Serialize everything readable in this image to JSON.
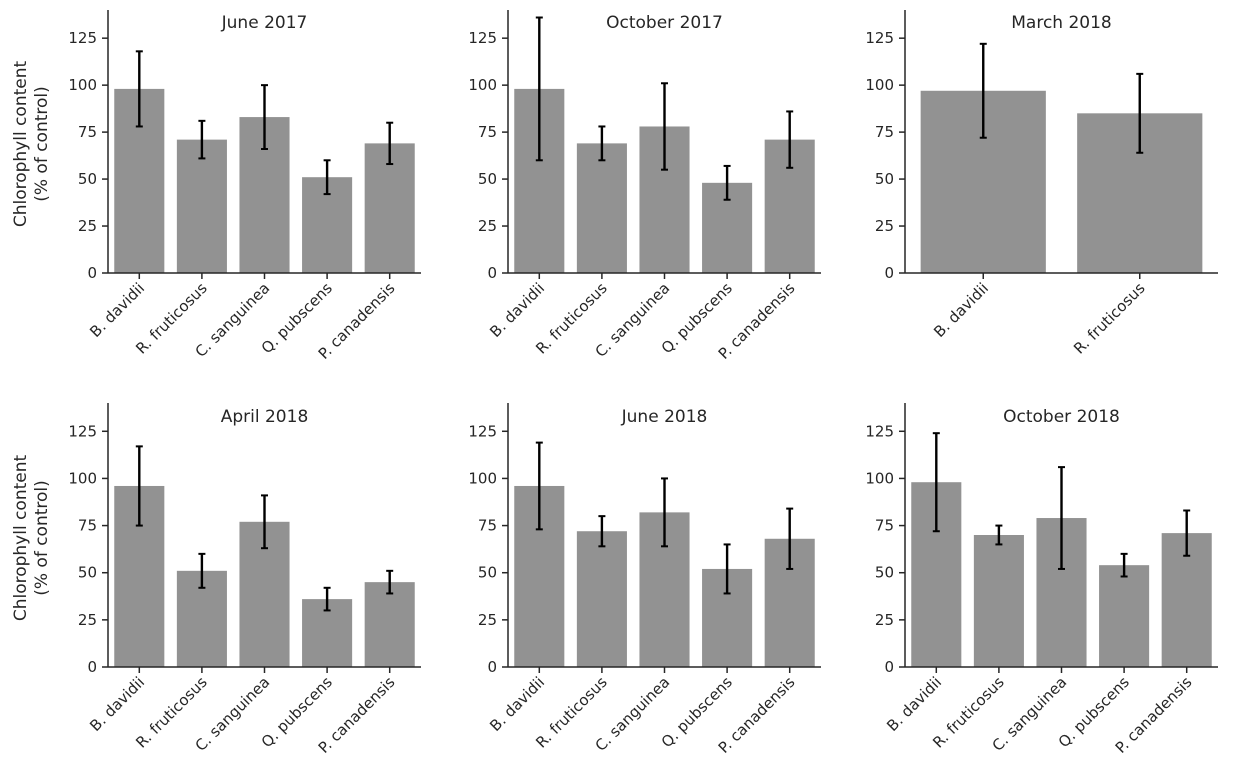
{
  "figure": {
    "ylabel_lines": [
      "Chlorophyll content",
      "(% of control)"
    ]
  },
  "chart_data": [
    {
      "type": "bar",
      "title": "June 2017",
      "categories": [
        "B. davidii",
        "R. fruticosus",
        "C. sanguinea",
        "Q. pubscens",
        "P. canadensis"
      ],
      "values": [
        98,
        71,
        83,
        51,
        69
      ],
      "error": [
        20,
        10,
        17,
        9,
        11
      ],
      "ylim": [
        0,
        140
      ],
      "yticks": [
        0,
        25,
        50,
        75,
        100,
        125
      ],
      "ylabel": "Chlorophyll content (% of control)",
      "color": "#929292"
    },
    {
      "type": "bar",
      "title": "October 2017",
      "categories": [
        "B. davidii",
        "R. fruticosus",
        "C. sanguinea",
        "Q. pubscens",
        "P. canadensis"
      ],
      "values": [
        98,
        69,
        78,
        48,
        71
      ],
      "error": [
        38,
        9,
        23,
        9,
        15
      ],
      "ylim": [
        0,
        140
      ],
      "yticks": [
        0,
        25,
        50,
        75,
        100,
        125
      ],
      "ylabel": "",
      "color": "#929292"
    },
    {
      "type": "bar",
      "title": "March 2018",
      "categories": [
        "B. davidii",
        "R. fruticosus"
      ],
      "values": [
        97,
        85
      ],
      "error": [
        25,
        21
      ],
      "ylim": [
        0,
        140
      ],
      "yticks": [
        0,
        25,
        50,
        75,
        100,
        125
      ],
      "ylabel": "",
      "color": "#929292"
    },
    {
      "type": "bar",
      "title": "April 2018",
      "categories": [
        "B. davidii",
        "R. fruticosus",
        "C. sanguinea",
        "Q. pubscens",
        "P. canadensis"
      ],
      "values": [
        96,
        51,
        77,
        36,
        45
      ],
      "error": [
        21,
        9,
        14,
        6,
        6
      ],
      "ylim": [
        0,
        140
      ],
      "yticks": [
        0,
        25,
        50,
        75,
        100,
        125
      ],
      "ylabel": "Chlorophyll content (% of control)",
      "color": "#929292"
    },
    {
      "type": "bar",
      "title": "June 2018",
      "categories": [
        "B. davidii",
        "R. fruticosus",
        "C. sanguinea",
        "Q. pubscens",
        "P. canadensis"
      ],
      "values": [
        96,
        72,
        82,
        52,
        68
      ],
      "error": [
        23,
        8,
        18,
        13,
        16
      ],
      "ylim": [
        0,
        140
      ],
      "yticks": [
        0,
        25,
        50,
        75,
        100,
        125
      ],
      "ylabel": "",
      "color": "#929292"
    },
    {
      "type": "bar",
      "title": "October 2018",
      "categories": [
        "B. davidii",
        "R. fruticosus",
        "C. sanguinea",
        "Q. pubscens",
        "P. canadensis"
      ],
      "values": [
        98,
        70,
        79,
        54,
        71
      ],
      "error": [
        26,
        5,
        27,
        6,
        12
      ],
      "ylim": [
        0,
        140
      ],
      "yticks": [
        0,
        25,
        50,
        75,
        100,
        125
      ],
      "ylabel": "",
      "color": "#929292"
    }
  ]
}
